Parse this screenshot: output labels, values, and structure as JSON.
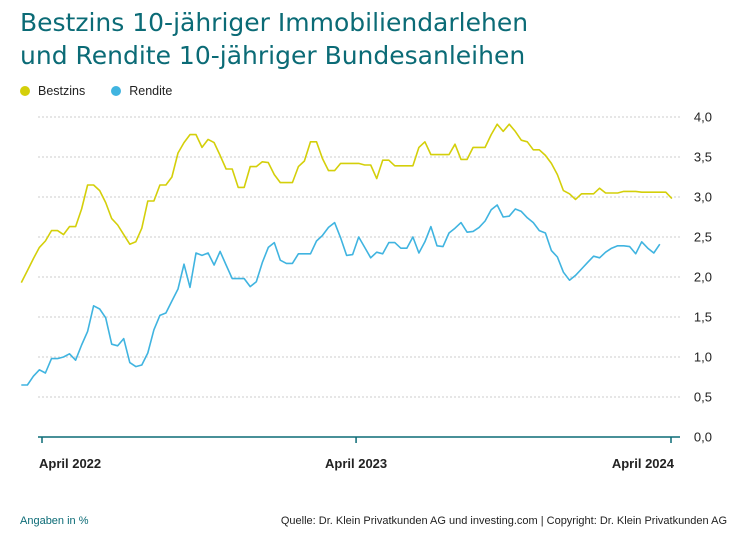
{
  "title_line1": "Bestzins 10-jähriger Immobiliendarlehen",
  "title_line2": "und Rendite 10-jähriger Bundesanleihen",
  "footnote": "Angaben in %",
  "source": "Quelle: Dr. Klein Privatkunden AG und investing.com | Copyright: Dr. Klein Privatkunden AG",
  "colors": {
    "title": "#0b6b76",
    "bestzins": "#d4cf0a",
    "rendite": "#40b4e0",
    "axis": "#0b6b76",
    "grid": "#cccccc"
  },
  "chart_data": {
    "type": "line",
    "x_start": "2022-03",
    "x_end": "2024-05",
    "x_ticks": [
      {
        "label": "April 2022",
        "x": "2022-04"
      },
      {
        "label": "April 2023",
        "x": "2023-04"
      },
      {
        "label": "April 2024",
        "x": "2024-04"
      }
    ],
    "y_ticks": [
      "0,0",
      "0,5",
      "1,0",
      "1,5",
      "2,0",
      "2,5",
      "3,0",
      "3,5",
      "4,0"
    ],
    "ylim": [
      0,
      4
    ],
    "grid": true,
    "legend_position": "top-left",
    "series": [
      {
        "name": "Bestzins",
        "points": [
          [
            "2022-03-08",
            1.93
          ],
          [
            "2022-03-15",
            2.08
          ],
          [
            "2022-03-22",
            2.23
          ],
          [
            "2022-03-29",
            2.37
          ],
          [
            "2022-04-05",
            2.45
          ],
          [
            "2022-04-12",
            2.58
          ],
          [
            "2022-04-19",
            2.58
          ],
          [
            "2022-04-26",
            2.53
          ],
          [
            "2022-05-03",
            2.63
          ],
          [
            "2022-05-10",
            2.63
          ],
          [
            "2022-05-17",
            2.85
          ],
          [
            "2022-05-24",
            3.15
          ],
          [
            "2022-05-31",
            3.15
          ],
          [
            "2022-06-07",
            3.08
          ],
          [
            "2022-06-14",
            2.93
          ],
          [
            "2022-06-21",
            2.73
          ],
          [
            "2022-06-28",
            2.65
          ],
          [
            "2022-07-05",
            2.53
          ],
          [
            "2022-07-12",
            2.41
          ],
          [
            "2022-07-19",
            2.44
          ],
          [
            "2022-07-26",
            2.61
          ],
          [
            "2022-08-02",
            2.95
          ],
          [
            "2022-08-09",
            2.95
          ],
          [
            "2022-08-16",
            3.15
          ],
          [
            "2022-08-23",
            3.15
          ],
          [
            "2022-08-30",
            3.25
          ],
          [
            "2022-09-06",
            3.55
          ],
          [
            "2022-09-13",
            3.68
          ],
          [
            "2022-09-20",
            3.78
          ],
          [
            "2022-09-27",
            3.78
          ],
          [
            "2022-10-04",
            3.62
          ],
          [
            "2022-10-11",
            3.72
          ],
          [
            "2022-10-18",
            3.68
          ],
          [
            "2022-10-25",
            3.52
          ],
          [
            "2022-11-01",
            3.35
          ],
          [
            "2022-11-08",
            3.35
          ],
          [
            "2022-11-15",
            3.12
          ],
          [
            "2022-11-22",
            3.12
          ],
          [
            "2022-11-29",
            3.38
          ],
          [
            "2022-12-06",
            3.38
          ],
          [
            "2022-12-13",
            3.44
          ],
          [
            "2022-12-20",
            3.43
          ],
          [
            "2022-12-27",
            3.28
          ],
          [
            "2023-01-03",
            3.18
          ],
          [
            "2023-01-10",
            3.18
          ],
          [
            "2023-01-17",
            3.18
          ],
          [
            "2023-01-24",
            3.38
          ],
          [
            "2023-01-31",
            3.45
          ],
          [
            "2023-02-07",
            3.69
          ],
          [
            "2023-02-14",
            3.69
          ],
          [
            "2023-02-21",
            3.48
          ],
          [
            "2023-02-28",
            3.33
          ],
          [
            "2023-03-07",
            3.33
          ],
          [
            "2023-03-14",
            3.42
          ],
          [
            "2023-03-21",
            3.42
          ],
          [
            "2023-03-28",
            3.42
          ],
          [
            "2023-04-04",
            3.42
          ],
          [
            "2023-04-11",
            3.4
          ],
          [
            "2023-04-18",
            3.4
          ],
          [
            "2023-04-25",
            3.23
          ],
          [
            "2023-05-02",
            3.46
          ],
          [
            "2023-05-09",
            3.46
          ],
          [
            "2023-05-16",
            3.39
          ],
          [
            "2023-05-23",
            3.39
          ],
          [
            "2023-05-30",
            3.39
          ],
          [
            "2023-06-06",
            3.39
          ],
          [
            "2023-06-13",
            3.62
          ],
          [
            "2023-06-20",
            3.69
          ],
          [
            "2023-06-27",
            3.53
          ],
          [
            "2023-07-04",
            3.53
          ],
          [
            "2023-07-11",
            3.53
          ],
          [
            "2023-07-18",
            3.53
          ],
          [
            "2023-07-25",
            3.66
          ],
          [
            "2023-08-01",
            3.47
          ],
          [
            "2023-08-08",
            3.47
          ],
          [
            "2023-08-15",
            3.62
          ],
          [
            "2023-08-22",
            3.62
          ],
          [
            "2023-08-29",
            3.62
          ],
          [
            "2023-09-05",
            3.78
          ],
          [
            "2023-09-12",
            3.91
          ],
          [
            "2023-09-19",
            3.82
          ],
          [
            "2023-09-26",
            3.91
          ],
          [
            "2023-10-03",
            3.82
          ],
          [
            "2023-10-10",
            3.71
          ],
          [
            "2023-10-17",
            3.69
          ],
          [
            "2023-10-24",
            3.59
          ],
          [
            "2023-10-31",
            3.59
          ],
          [
            "2023-11-07",
            3.52
          ],
          [
            "2023-11-14",
            3.42
          ],
          [
            "2023-11-21",
            3.28
          ],
          [
            "2023-11-28",
            3.08
          ],
          [
            "2023-12-05",
            3.04
          ],
          [
            "2023-12-12",
            2.97
          ],
          [
            "2023-12-19",
            3.04
          ],
          [
            "2023-12-26",
            3.04
          ],
          [
            "2024-01-02",
            3.04
          ],
          [
            "2024-01-09",
            3.11
          ],
          [
            "2024-01-16",
            3.05
          ],
          [
            "2024-01-23",
            3.05
          ],
          [
            "2024-01-30",
            3.05
          ],
          [
            "2024-02-06",
            3.07
          ],
          [
            "2024-02-13",
            3.07
          ],
          [
            "2024-02-20",
            3.07
          ],
          [
            "2024-02-27",
            3.06
          ],
          [
            "2024-03-05",
            3.06
          ],
          [
            "2024-03-12",
            3.06
          ],
          [
            "2024-03-19",
            3.06
          ],
          [
            "2024-03-26",
            3.06
          ],
          [
            "2024-04-02",
            2.98
          ]
        ]
      },
      {
        "name": "Rendite",
        "points": [
          [
            "2022-03-08",
            0.65
          ],
          [
            "2022-03-15",
            0.65
          ],
          [
            "2022-03-22",
            0.76
          ],
          [
            "2022-03-29",
            0.84
          ],
          [
            "2022-04-05",
            0.8
          ],
          [
            "2022-04-12",
            0.98
          ],
          [
            "2022-04-19",
            0.98
          ],
          [
            "2022-04-26",
            1.0
          ],
          [
            "2022-05-03",
            1.04
          ],
          [
            "2022-05-10",
            0.96
          ],
          [
            "2022-05-17",
            1.15
          ],
          [
            "2022-05-24",
            1.32
          ],
          [
            "2022-05-31",
            1.64
          ],
          [
            "2022-06-07",
            1.6
          ],
          [
            "2022-06-14",
            1.49
          ],
          [
            "2022-06-21",
            1.16
          ],
          [
            "2022-06-28",
            1.14
          ],
          [
            "2022-07-05",
            1.23
          ],
          [
            "2022-07-12",
            0.93
          ],
          [
            "2022-07-19",
            0.88
          ],
          [
            "2022-07-26",
            0.9
          ],
          [
            "2022-08-02",
            1.05
          ],
          [
            "2022-08-09",
            1.34
          ],
          [
            "2022-08-16",
            1.52
          ],
          [
            "2022-08-23",
            1.55
          ],
          [
            "2022-08-30",
            1.7
          ],
          [
            "2022-09-06",
            1.85
          ],
          [
            "2022-09-13",
            2.16
          ],
          [
            "2022-09-20",
            1.87
          ],
          [
            "2022-09-27",
            2.3
          ],
          [
            "2022-10-04",
            2.27
          ],
          [
            "2022-10-11",
            2.3
          ],
          [
            "2022-10-18",
            2.15
          ],
          [
            "2022-10-25",
            2.32
          ],
          [
            "2022-11-01",
            2.15
          ],
          [
            "2022-11-08",
            1.98
          ],
          [
            "2022-11-15",
            1.98
          ],
          [
            "2022-11-22",
            1.98
          ],
          [
            "2022-11-29",
            1.88
          ],
          [
            "2022-12-06",
            1.94
          ],
          [
            "2022-12-13",
            2.18
          ],
          [
            "2022-12-20",
            2.37
          ],
          [
            "2022-12-27",
            2.43
          ],
          [
            "2023-01-03",
            2.21
          ],
          [
            "2023-01-10",
            2.17
          ],
          [
            "2023-01-17",
            2.17
          ],
          [
            "2023-01-24",
            2.29
          ],
          [
            "2023-01-31",
            2.29
          ],
          [
            "2023-02-07",
            2.29
          ],
          [
            "2023-02-14",
            2.45
          ],
          [
            "2023-02-21",
            2.52
          ],
          [
            "2023-02-28",
            2.62
          ],
          [
            "2023-03-07",
            2.68
          ],
          [
            "2023-03-14",
            2.49
          ],
          [
            "2023-03-21",
            2.27
          ],
          [
            "2023-03-28",
            2.28
          ],
          [
            "2023-04-04",
            2.5
          ],
          [
            "2023-04-11",
            2.37
          ],
          [
            "2023-04-18",
            2.24
          ],
          [
            "2023-04-25",
            2.31
          ],
          [
            "2023-05-02",
            2.29
          ],
          [
            "2023-05-09",
            2.43
          ],
          [
            "2023-05-16",
            2.43
          ],
          [
            "2023-05-23",
            2.36
          ],
          [
            "2023-05-30",
            2.36
          ],
          [
            "2023-06-06",
            2.5
          ],
          [
            "2023-06-13",
            2.3
          ],
          [
            "2023-06-20",
            2.44
          ],
          [
            "2023-06-27",
            2.63
          ],
          [
            "2023-07-04",
            2.39
          ],
          [
            "2023-07-11",
            2.38
          ],
          [
            "2023-07-18",
            2.55
          ],
          [
            "2023-07-25",
            2.61
          ],
          [
            "2023-08-01",
            2.68
          ],
          [
            "2023-08-08",
            2.56
          ],
          [
            "2023-08-15",
            2.57
          ],
          [
            "2023-08-22",
            2.62
          ],
          [
            "2023-08-29",
            2.7
          ],
          [
            "2023-09-05",
            2.84
          ],
          [
            "2023-09-12",
            2.9
          ],
          [
            "2023-09-19",
            2.75
          ],
          [
            "2023-09-26",
            2.76
          ],
          [
            "2023-10-03",
            2.85
          ],
          [
            "2023-10-10",
            2.82
          ],
          [
            "2023-10-17",
            2.74
          ],
          [
            "2023-10-24",
            2.68
          ],
          [
            "2023-10-31",
            2.58
          ],
          [
            "2023-11-07",
            2.55
          ],
          [
            "2023-11-14",
            2.33
          ],
          [
            "2023-11-21",
            2.25
          ],
          [
            "2023-11-28",
            2.06
          ],
          [
            "2023-12-05",
            1.96
          ],
          [
            "2023-12-12",
            2.02
          ],
          [
            "2023-12-19",
            2.1
          ],
          [
            "2023-12-26",
            2.18
          ],
          [
            "2024-01-02",
            2.26
          ],
          [
            "2024-01-09",
            2.24
          ],
          [
            "2024-01-16",
            2.31
          ],
          [
            "2024-01-23",
            2.36
          ],
          [
            "2024-01-30",
            2.39
          ],
          [
            "2024-02-06",
            2.39
          ],
          [
            "2024-02-13",
            2.38
          ],
          [
            "2024-02-20",
            2.29
          ],
          [
            "2024-02-27",
            2.44
          ],
          [
            "2024-03-05",
            2.36
          ],
          [
            "2024-03-12",
            2.3
          ],
          [
            "2024-03-19",
            2.41
          ]
        ]
      }
    ]
  }
}
